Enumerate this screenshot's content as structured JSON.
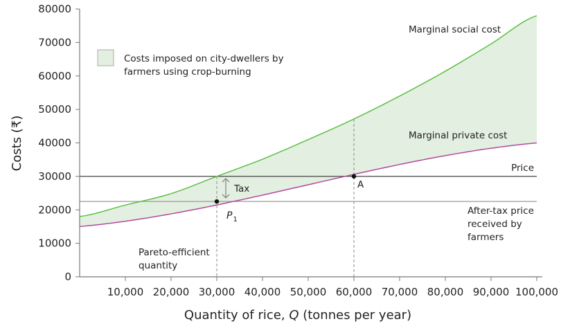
{
  "chart_data": {
    "type": "line",
    "xlabel_parts": [
      "Quantity of rice, ",
      "Q",
      " (tonnes per year)"
    ],
    "ylabel": "Costs (₹)",
    "xlim": [
      0,
      100000
    ],
    "ylim": [
      0,
      80000
    ],
    "x_ticks": [
      10000,
      20000,
      30000,
      40000,
      50000,
      60000,
      70000,
      80000,
      90000,
      100000
    ],
    "x_tick_labels": [
      "10,000",
      "20,000",
      "30,000",
      "40,000",
      "50,000",
      "60,000",
      "70,000",
      "80,000",
      "90,000",
      "100,000"
    ],
    "y_ticks": [
      0,
      10000,
      20000,
      30000,
      40000,
      50000,
      60000,
      70000,
      80000
    ],
    "y_tick_labels": [
      "0",
      "10000",
      "20000",
      "30000",
      "40000",
      "50000",
      "60000",
      "70000",
      "80000"
    ],
    "grid": false,
    "series": [
      {
        "name": "Marginal social cost",
        "color": "#5cbf46",
        "x": [
          0,
          10000,
          20000,
          30000,
          40000,
          50000,
          60000,
          70000,
          80000,
          90000,
          100000
        ],
        "y": [
          18000,
          21430,
          24850,
          30000,
          35140,
          41000,
          47140,
          54000,
          61430,
          69570,
          78000
        ]
      },
      {
        "name": "Marginal private cost",
        "color": "#b3479e",
        "x": [
          0,
          100000
        ],
        "y": [
          15000,
          40000
        ]
      }
    ],
    "hlines": [
      {
        "name": "Price",
        "y": 30000,
        "color": "#444444"
      },
      {
        "name": "After-tax price received by farmers",
        "y": 22500,
        "color": "#999999"
      }
    ],
    "points": [
      {
        "label": "P",
        "subscript": "1",
        "x": 30000,
        "y": 22500
      },
      {
        "label": "A",
        "x": 60000,
        "y": 30000
      }
    ],
    "shaded_area": {
      "between": [
        "Marginal private cost",
        "Marginal social cost"
      ],
      "color": "#e3efe0"
    },
    "legend": {
      "label_lines": [
        "Costs imposed on city-dwellers by",
        "farmers using crop-burning"
      ],
      "placement": "top-left"
    },
    "annotations": {
      "msc": "Marginal social cost",
      "mpc": "Marginal private cost",
      "price": "Price",
      "after_tax": [
        "After-tax price",
        "received by",
        "farmers"
      ],
      "tax": "Tax",
      "pareto": [
        "Pareto-efficient",
        "quantity"
      ]
    }
  }
}
